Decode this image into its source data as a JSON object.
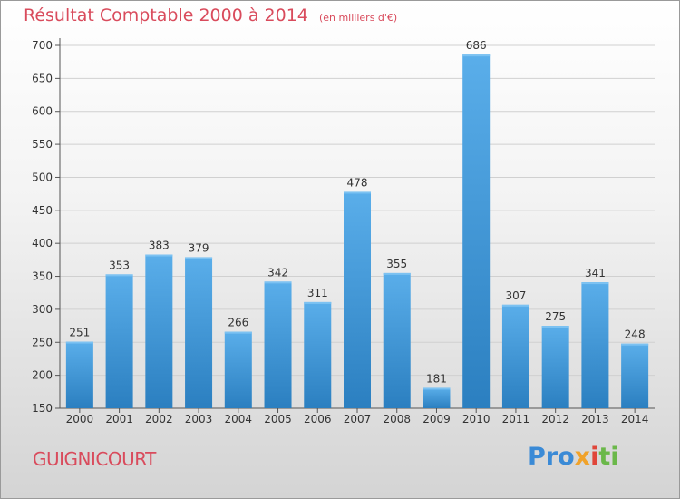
{
  "header": {
    "title": "Résultat Comptable 2000 à 2014",
    "subtitle": "(en milliers d'€)"
  },
  "footer": {
    "town": "GUIGNICOURT",
    "logo": "Proxiti"
  },
  "colors": {
    "title": "#d94b5c",
    "bar_top": "#5aaeea",
    "bar_bottom": "#2b7fc0"
  },
  "chart_data": {
    "type": "bar",
    "title": "Résultat Comptable 2000 à 2014",
    "subtitle": "(en milliers d'€)",
    "categories": [
      "2000",
      "2001",
      "2002",
      "2003",
      "2004",
      "2005",
      "2006",
      "2007",
      "2008",
      "2009",
      "2010",
      "2011",
      "2012",
      "2013",
      "2014"
    ],
    "values": [
      251,
      353,
      383,
      379,
      266,
      342,
      311,
      478,
      355,
      181,
      686,
      307,
      275,
      341,
      248
    ],
    "ylim": [
      150,
      700
    ],
    "yticks": [
      150,
      200,
      250,
      300,
      350,
      400,
      450,
      500,
      550,
      600,
      650,
      700
    ],
    "grid": true,
    "xlabel": "",
    "ylabel": ""
  }
}
